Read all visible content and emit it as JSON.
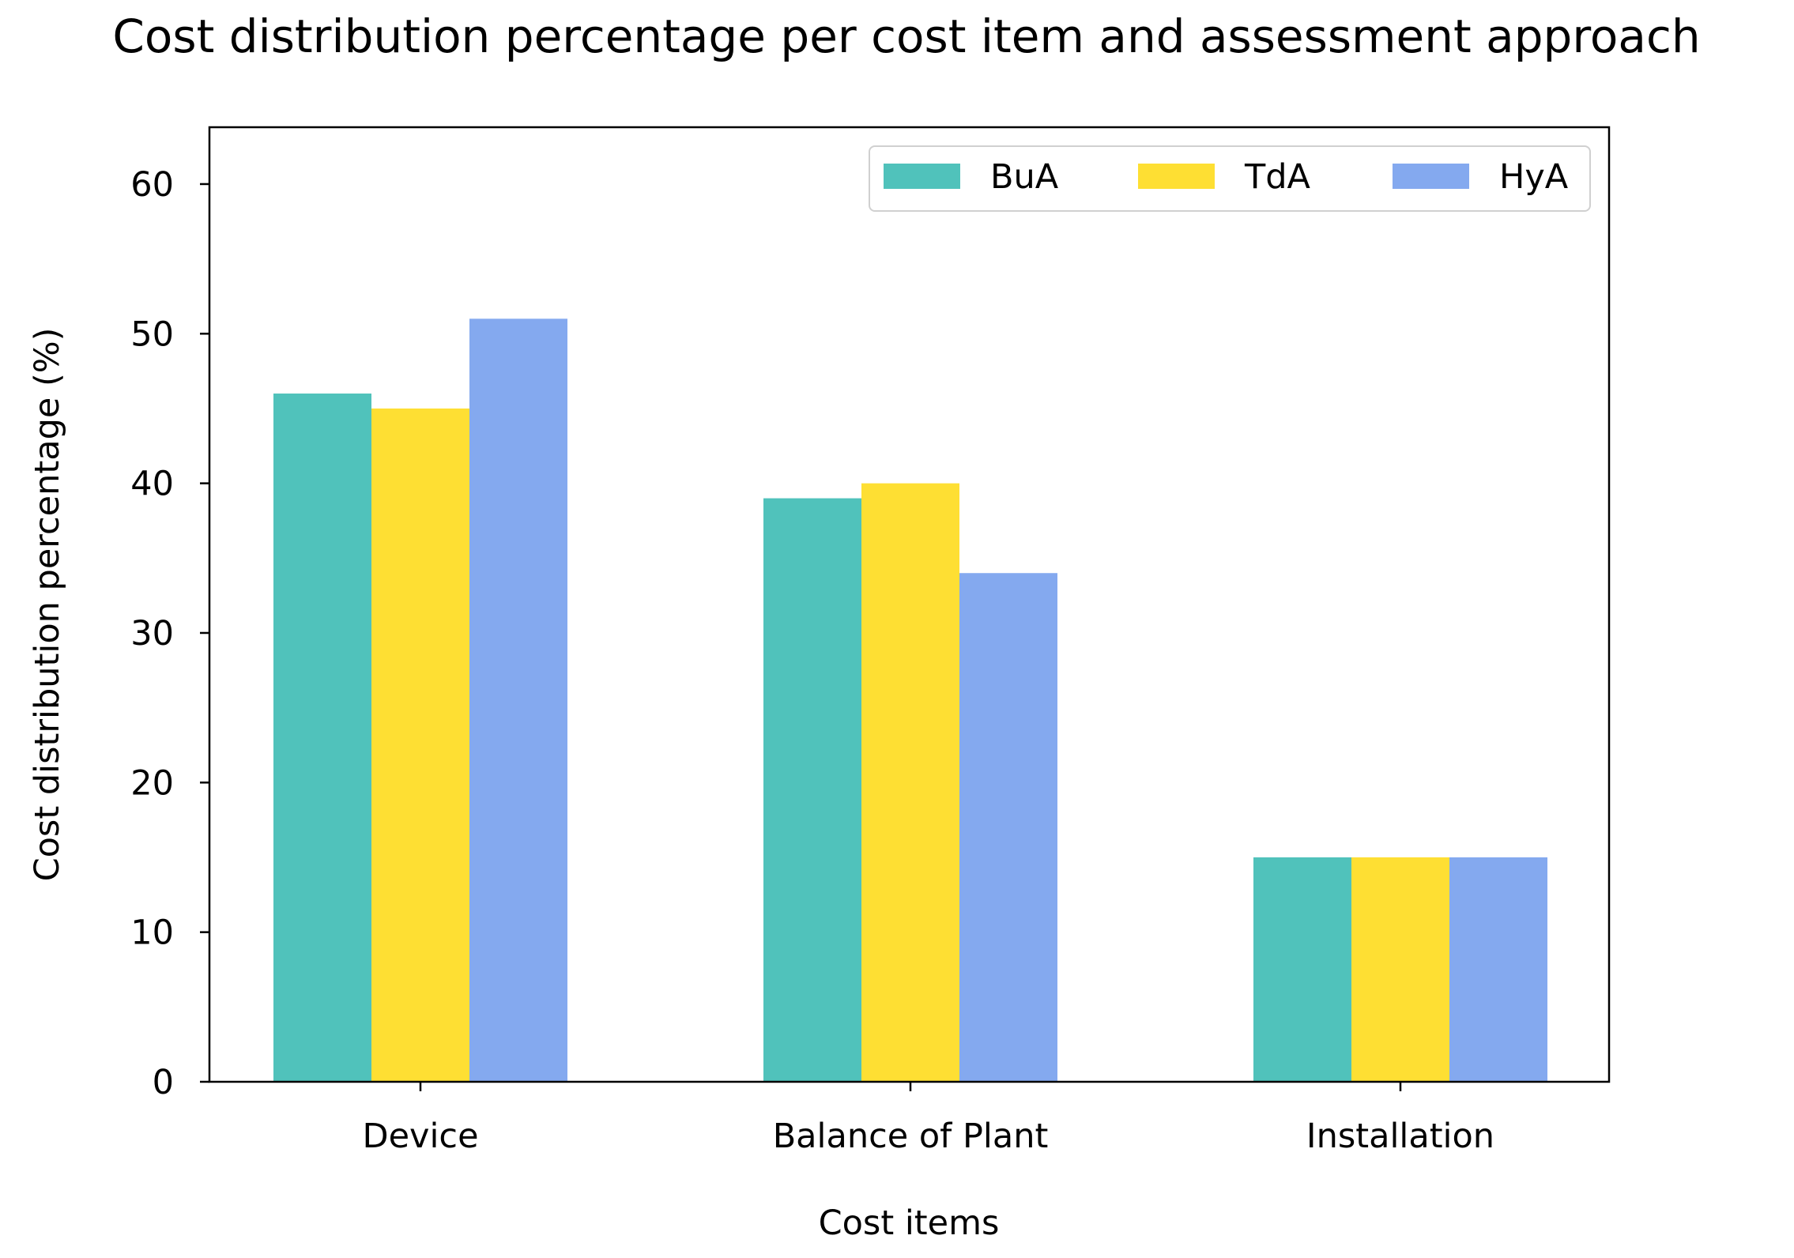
{
  "chart_data": {
    "type": "bar",
    "title": "Cost distribution percentage per cost item and assessment approach",
    "xlabel": "Cost items",
    "ylabel": "Cost distribution percentage (%)",
    "categories": [
      "Device",
      "Balance of Plant",
      "Installation"
    ],
    "series": [
      {
        "name": "BuA",
        "color": "#50c2bb",
        "values": [
          46,
          39,
          15
        ]
      },
      {
        "name": "TdA",
        "color": "#fedf33",
        "values": [
          45,
          40,
          15
        ]
      },
      {
        "name": "HyA",
        "color": "#84a9ef",
        "values": [
          51,
          34,
          15
        ]
      }
    ],
    "ylim": [
      0,
      63.8
    ],
    "yticks": [
      0,
      10,
      20,
      30,
      40,
      50,
      60
    ],
    "legend_position": "top-right",
    "grid": false
  }
}
